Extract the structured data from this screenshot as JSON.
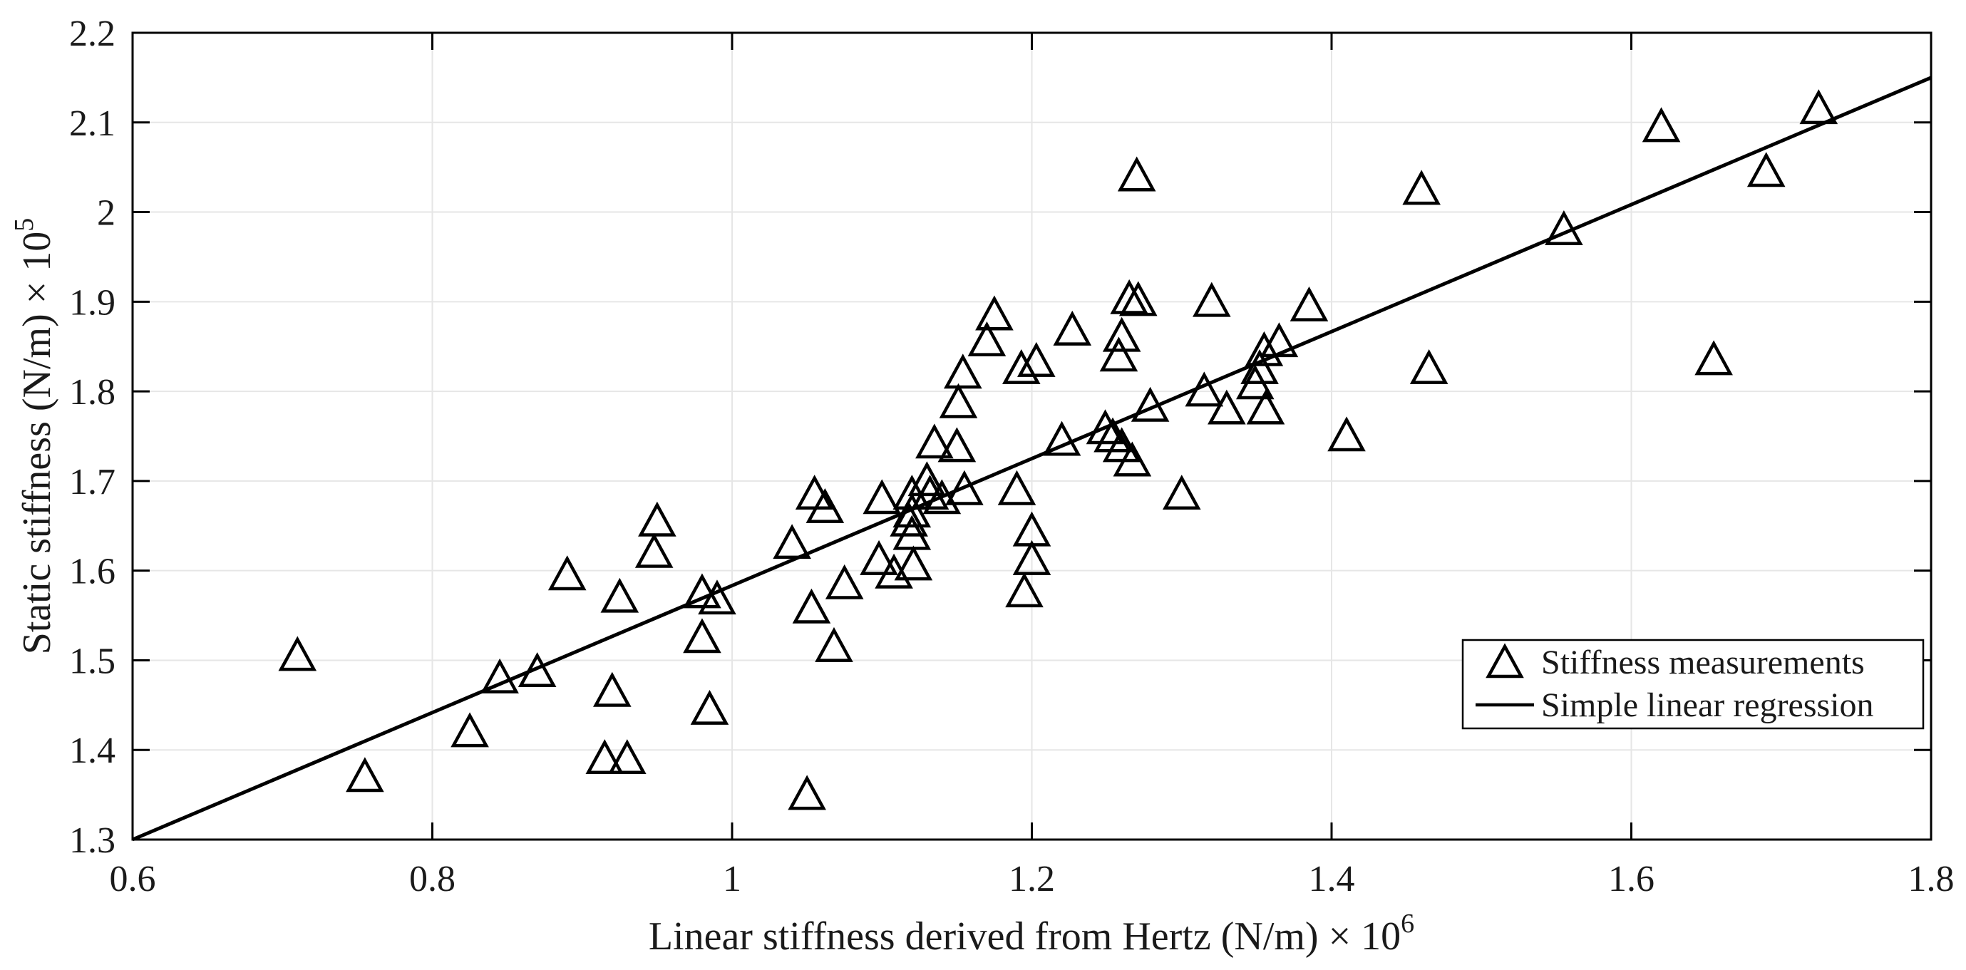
{
  "figure": {
    "background_color": "#ffffff",
    "plot_border_color": "#000000",
    "gridline_color": "#e6e6e6",
    "marker_color": "#000000",
    "line_color": "#000000",
    "text_color": "#1a1a1a"
  },
  "axes": {
    "x": {
      "label": "Linear stiffness derived from Hertz (N/m) × 10",
      "label_exp": "6",
      "min": 0.6,
      "max": 1.8,
      "tick_values": [
        0.6,
        0.8,
        1.0,
        1.2,
        1.4,
        1.6,
        1.8
      ],
      "tick_labels": [
        "0.6",
        "0.8",
        "1",
        "1.2",
        "1.4",
        "1.6",
        "1.8"
      ]
    },
    "y": {
      "label": "Static stiffness (N/m) × 10",
      "label_exp": "5",
      "min": 1.3,
      "max": 2.2,
      "tick_values": [
        1.3,
        1.4,
        1.5,
        1.6,
        1.7,
        1.8,
        1.9,
        2.0,
        2.1,
        2.2
      ],
      "tick_labels": [
        "1.3",
        "1.4",
        "1.5",
        "1.6",
        "1.7",
        "1.8",
        "1.9",
        "2",
        "2.1",
        "2.2"
      ]
    }
  },
  "legend": {
    "items": [
      {
        "label": "Stiffness measurements",
        "symbol": "triangle-marker"
      },
      {
        "label": "Simple linear regression",
        "symbol": "line-sample"
      }
    ]
  },
  "chart_data": {
    "type": "scatter",
    "title": "",
    "xlabel": "Linear stiffness derived from Hertz (N/m) × 10^6",
    "ylabel": "Static stiffness (N/m) × 10^5",
    "xlim": [
      0.6,
      1.8
    ],
    "ylim": [
      1.3,
      2.2
    ],
    "grid": true,
    "legend_position": "right-center-inside",
    "series": [
      {
        "name": "Stiffness measurements",
        "type": "scatter",
        "marker": "triangle-up-hollow",
        "points": [
          [
            0.71,
            1.505
          ],
          [
            0.755,
            1.37
          ],
          [
            0.825,
            1.42
          ],
          [
            0.845,
            1.48
          ],
          [
            0.87,
            1.487
          ],
          [
            0.89,
            1.595
          ],
          [
            0.915,
            1.39
          ],
          [
            0.93,
            1.39
          ],
          [
            0.92,
            1.465
          ],
          [
            0.925,
            1.57
          ],
          [
            0.95,
            1.655
          ],
          [
            0.948,
            1.62
          ],
          [
            0.98,
            1.575
          ],
          [
            0.99,
            1.568
          ],
          [
            0.98,
            1.525
          ],
          [
            0.985,
            1.445
          ],
          [
            1.05,
            1.35
          ],
          [
            1.04,
            1.63
          ],
          [
            1.055,
            1.685
          ],
          [
            1.062,
            1.67
          ],
          [
            1.053,
            1.558
          ],
          [
            1.075,
            1.585
          ],
          [
            1.068,
            1.515
          ],
          [
            1.098,
            1.612
          ],
          [
            1.108,
            1.597
          ],
          [
            1.121,
            1.606
          ],
          [
            1.1,
            1.68
          ],
          [
            1.12,
            1.685
          ],
          [
            1.13,
            1.7
          ],
          [
            1.132,
            1.685
          ],
          [
            1.14,
            1.68
          ],
          [
            1.155,
            1.69
          ],
          [
            1.12,
            1.665
          ],
          [
            1.118,
            1.655
          ],
          [
            1.12,
            1.64
          ],
          [
            1.135,
            1.742
          ],
          [
            1.15,
            1.738
          ],
          [
            1.175,
            1.885
          ],
          [
            1.17,
            1.856
          ],
          [
            1.154,
            1.82
          ],
          [
            1.151,
            1.787
          ],
          [
            1.193,
            1.825
          ],
          [
            1.203,
            1.833
          ],
          [
            1.227,
            1.868
          ],
          [
            1.265,
            1.903
          ],
          [
            1.271,
            1.901
          ],
          [
            1.26,
            1.861
          ],
          [
            1.258,
            1.839
          ],
          [
            1.27,
            2.04
          ],
          [
            1.19,
            1.69
          ],
          [
            1.2,
            1.644
          ],
          [
            1.2,
            1.612
          ],
          [
            1.195,
            1.576
          ],
          [
            1.22,
            1.745
          ],
          [
            1.249,
            1.758
          ],
          [
            1.254,
            1.749
          ],
          [
            1.26,
            1.738
          ],
          [
            1.267,
            1.722
          ],
          [
            1.279,
            1.783
          ],
          [
            1.3,
            1.685
          ],
          [
            1.32,
            1.9
          ],
          [
            1.385,
            1.895
          ],
          [
            1.365,
            1.855
          ],
          [
            1.355,
            1.845
          ],
          [
            1.352,
            1.825
          ],
          [
            1.349,
            1.808
          ],
          [
            1.315,
            1.8
          ],
          [
            1.33,
            1.78
          ],
          [
            1.356,
            1.78
          ],
          [
            1.41,
            1.75
          ],
          [
            1.465,
            1.825
          ],
          [
            1.46,
            2.025
          ],
          [
            1.555,
            1.98
          ],
          [
            1.62,
            2.095
          ],
          [
            1.69,
            2.045
          ],
          [
            1.725,
            2.115
          ],
          [
            1.655,
            1.835
          ]
        ]
      },
      {
        "name": "Simple linear regression",
        "type": "line",
        "x": [
          0.6,
          1.8
        ],
        "y": [
          1.3,
          2.15
        ]
      }
    ]
  }
}
